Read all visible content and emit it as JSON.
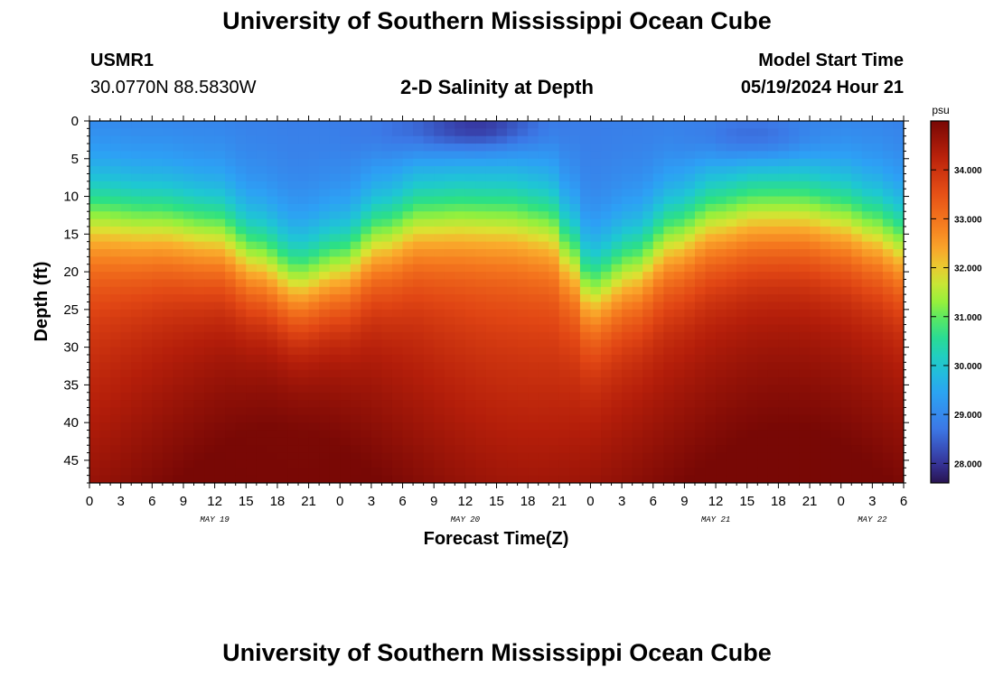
{
  "page": {
    "title": "University of Southern Mississippi Ocean Cube",
    "station_id": "USMR1",
    "station_coords": "30.0770N  88.5830W",
    "model_start_label": "Model Start Time",
    "model_start_value": "05/19/2024 Hour 21",
    "footer_title": "University of Southern Mississippi Ocean Cube"
  },
  "chart_data": {
    "type": "heatmap",
    "title": "2-D Salinity at Depth",
    "xlabel": "Forecast Time(Z)",
    "ylabel": "Depth (ft)",
    "colorbar_unit": "psu",
    "x_tick_labels": [
      "0",
      "3",
      "6",
      "9",
      "12",
      "15",
      "18",
      "21",
      "0",
      "3",
      "6",
      "9",
      "12",
      "15",
      "18",
      "21",
      "0",
      "3",
      "6",
      "9",
      "12",
      "15",
      "18",
      "21",
      "0",
      "3",
      "6"
    ],
    "day_labels": [
      {
        "label": "MAY 19",
        "hour": 12
      },
      {
        "label": "MAY 20",
        "hour": 36
      },
      {
        "label": "MAY 21",
        "hour": 60
      },
      {
        "label": "MAY 22",
        "hour": 75
      }
    ],
    "xlim_hours": [
      0,
      78
    ],
    "ylim": [
      0,
      48
    ],
    "y_ticks": [
      0,
      5,
      10,
      15,
      20,
      25,
      30,
      35,
      40,
      45
    ],
    "color_range": [
      27.6,
      35.0
    ],
    "colorbar_ticks": [
      "28.000",
      "29.000",
      "30.000",
      "31.000",
      "32.000",
      "33.000",
      "34.000"
    ],
    "colorbar_values": [
      28,
      29,
      30,
      31,
      32,
      33,
      34
    ],
    "halocline_depth_profile": {
      "hours": [
        0,
        6,
        12,
        16,
        20,
        24,
        28,
        32,
        36,
        40,
        44,
        46,
        48,
        52,
        56,
        60,
        64,
        68,
        72,
        75,
        78
      ],
      "depth_ft": [
        12,
        13,
        14.5,
        18,
        21,
        19,
        15,
        12.5,
        12,
        12,
        13,
        17,
        22,
        19,
        15,
        12.5,
        11.5,
        11.5,
        12.5,
        14,
        16
      ]
    },
    "fresh_surface_patches": [
      {
        "hour": 37.5,
        "depth_ft": 1,
        "salinity": 27.8
      },
      {
        "hour": 64,
        "depth_ft": 2.5,
        "salinity": 28.1
      },
      {
        "hour": 31,
        "depth_ft": 2,
        "salinity": 28.5
      }
    ],
    "surface_salinity": 28.8,
    "bottom_salinity_range": [
      34.2,
      34.9
    ]
  }
}
